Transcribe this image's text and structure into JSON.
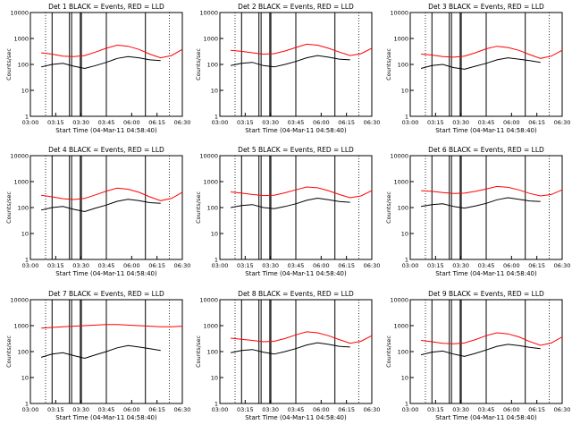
{
  "x_ticks": [
    "03:00",
    "03:15",
    "03:30",
    "03:45",
    "06:00",
    "06:15",
    "06:30"
  ],
  "y_ticks": [
    "1",
    "10",
    "100",
    "1000",
    "10000"
  ],
  "y_label": "Counts/sec",
  "x_label": "Start Time (04-Mar-11 04:58:40)",
  "colors": {
    "events": "#000000",
    "lld": "#ff0000"
  },
  "chart_data": [
    {
      "type": "line",
      "title": "Det 1 BLACK = Events, RED = LLD",
      "xlabel": "Start Time (04-Mar-11 04:58:40)",
      "ylabel": "Counts/sec",
      "yscale": "log",
      "ylim": [
        1,
        10000
      ],
      "x": [
        0.0,
        0.5,
        1.0,
        1.5,
        2.0,
        2.5,
        3.0,
        3.5,
        4.0,
        4.5,
        5.0,
        5.5,
        6.0,
        6.5,
        7.0
      ],
      "series": [
        {
          "name": "Events",
          "color": "#000000",
          "values": [
            null,
            80,
            100,
            110,
            85,
            70,
            90,
            120,
            170,
            200,
            180,
            150,
            140,
            null,
            null
          ]
        },
        {
          "name": "LLD",
          "color": "#ff0000",
          "values": [
            null,
            280,
            250,
            210,
            200,
            220,
            300,
            420,
            550,
            500,
            380,
            250,
            180,
            220,
            380
          ]
        }
      ]
    },
    {
      "type": "line",
      "title": "Det 2 BLACK = Events, RED = LLD",
      "xlabel": "Start Time (04-Mar-11 04:58:40)",
      "ylabel": "Counts/sec",
      "yscale": "log",
      "ylim": [
        1,
        10000
      ],
      "x": [
        0.0,
        0.5,
        1.0,
        1.5,
        2.0,
        2.5,
        3.0,
        3.5,
        4.0,
        4.5,
        5.0,
        5.5,
        6.0,
        6.5,
        7.0
      ],
      "series": [
        {
          "name": "Events",
          "color": "#000000",
          "values": [
            null,
            90,
            110,
            120,
            90,
            80,
            100,
            130,
            180,
            220,
            190,
            160,
            150,
            null,
            null
          ]
        },
        {
          "name": "LLD",
          "color": "#ff0000",
          "values": [
            null,
            350,
            320,
            280,
            250,
            260,
            330,
            450,
            600,
            550,
            420,
            300,
            220,
            260,
            420
          ]
        }
      ]
    },
    {
      "type": "line",
      "title": "Det 3 BLACK = Events, RED = LLD",
      "xlabel": "Start Time (04-Mar-11 04:58:40)",
      "ylabel": "Counts/sec",
      "yscale": "log",
      "ylim": [
        1,
        10000
      ],
      "x": [
        0.0,
        0.5,
        1.0,
        1.5,
        2.0,
        2.5,
        3.0,
        3.5,
        4.0,
        4.5,
        5.0,
        5.5,
        6.0,
        6.5,
        7.0
      ],
      "series": [
        {
          "name": "Events",
          "color": "#000000",
          "values": [
            null,
            70,
            90,
            100,
            75,
            65,
            85,
            110,
            150,
            180,
            160,
            140,
            120,
            null,
            null
          ]
        },
        {
          "name": "LLD",
          "color": "#ff0000",
          "values": [
            null,
            250,
            230,
            200,
            190,
            210,
            280,
            400,
            500,
            450,
            350,
            240,
            170,
            210,
            350
          ]
        }
      ]
    },
    {
      "type": "line",
      "title": "Det 4 BLACK = Events, RED = LLD",
      "xlabel": "Start Time (04-Mar-11 04:58:40)",
      "ylabel": "Counts/sec",
      "yscale": "log",
      "ylim": [
        1,
        10000
      ],
      "x": [
        0.0,
        0.5,
        1.0,
        1.5,
        2.0,
        2.5,
        3.0,
        3.5,
        4.0,
        4.5,
        5.0,
        5.5,
        6.0,
        6.5,
        7.0
      ],
      "series": [
        {
          "name": "Events",
          "color": "#000000",
          "values": [
            null,
            80,
            100,
            110,
            85,
            70,
            95,
            125,
            175,
            210,
            185,
            155,
            145,
            null,
            null
          ]
        },
        {
          "name": "LLD",
          "color": "#ff0000",
          "values": [
            null,
            300,
            260,
            220,
            205,
            225,
            310,
            430,
            560,
            510,
            390,
            260,
            185,
            225,
            390
          ]
        }
      ]
    },
    {
      "type": "line",
      "title": "Det 5 BLACK = Events, RED = LLD",
      "xlabel": "Start Time (04-Mar-11 04:58:40)",
      "ylabel": "Counts/sec",
      "yscale": "log",
      "ylim": [
        1,
        10000
      ],
      "x": [
        0.0,
        0.5,
        1.0,
        1.5,
        2.0,
        2.5,
        3.0,
        3.5,
        4.0,
        4.5,
        5.0,
        5.5,
        6.0,
        6.5,
        7.0
      ],
      "series": [
        {
          "name": "Events",
          "color": "#000000",
          "values": [
            null,
            100,
            120,
            130,
            100,
            90,
            110,
            140,
            190,
            230,
            200,
            170,
            160,
            null,
            null
          ]
        },
        {
          "name": "LLD",
          "color": "#ff0000",
          "values": [
            null,
            400,
            360,
            320,
            290,
            300,
            370,
            480,
            620,
            580,
            450,
            320,
            240,
            280,
            450
          ]
        }
      ]
    },
    {
      "type": "line",
      "title": "Det 6 BLACK = Events, RED = LLD",
      "xlabel": "Start Time (04-Mar-11 04:58:40)",
      "ylabel": "Counts/sec",
      "yscale": "log",
      "ylim": [
        1,
        10000
      ],
      "x": [
        0.0,
        0.5,
        1.0,
        1.5,
        2.0,
        2.5,
        3.0,
        3.5,
        4.0,
        4.5,
        5.0,
        5.5,
        6.0,
        6.5,
        7.0
      ],
      "series": [
        {
          "name": "Events",
          "color": "#000000",
          "values": [
            null,
            110,
            130,
            140,
            110,
            95,
            115,
            145,
            200,
            240,
            210,
            180,
            170,
            null,
            null
          ]
        },
        {
          "name": "LLD",
          "color": "#ff0000",
          "values": [
            null,
            450,
            420,
            380,
            350,
            360,
            420,
            520,
            650,
            600,
            480,
            350,
            280,
            320,
            480
          ]
        }
      ]
    },
    {
      "type": "line",
      "title": "Det 7 BLACK = Events, RED = LLD",
      "xlabel": "Start Time (04-Mar-11 04:58:40)",
      "ylabel": "Counts/sec",
      "yscale": "log",
      "ylim": [
        1,
        10000
      ],
      "x": [
        0.0,
        0.5,
        1.0,
        1.5,
        2.0,
        2.5,
        3.0,
        3.5,
        4.0,
        4.5,
        5.0,
        5.5,
        6.0,
        6.5,
        7.0
      ],
      "series": [
        {
          "name": "Events",
          "color": "#000000",
          "values": [
            null,
            60,
            80,
            90,
            70,
            55,
            75,
            100,
            140,
            170,
            150,
            130,
            110,
            null,
            null
          ]
        },
        {
          "name": "LLD",
          "color": "#ff0000",
          "values": [
            null,
            800,
            850,
            900,
            950,
            1000,
            1050,
            1100,
            1100,
            1050,
            1000,
            950,
            900,
            900,
            950
          ]
        }
      ]
    },
    {
      "type": "line",
      "title": "Det 8 BLACK = Events, RED = LLD",
      "xlabel": "Start Time (04-Mar-11 04:58:40)",
      "ylabel": "Counts/sec",
      "yscale": "log",
      "ylim": [
        1,
        10000
      ],
      "x": [
        0.0,
        0.5,
        1.0,
        1.5,
        2.0,
        2.5,
        3.0,
        3.5,
        4.0,
        4.5,
        5.0,
        5.5,
        6.0,
        6.5,
        7.0
      ],
      "series": [
        {
          "name": "Events",
          "color": "#000000",
          "values": [
            null,
            90,
            110,
            120,
            95,
            80,
            100,
            130,
            180,
            220,
            190,
            160,
            150,
            null,
            null
          ]
        },
        {
          "name": "LLD",
          "color": "#ff0000",
          "values": [
            null,
            330,
            300,
            270,
            240,
            250,
            320,
            440,
            580,
            530,
            410,
            290,
            210,
            250,
            410
          ]
        }
      ]
    },
    {
      "type": "line",
      "title": "Det 9 BLACK = Events, RED = LLD",
      "xlabel": "Start Time (04-Mar-11 04:58:40)",
      "ylabel": "Counts/sec",
      "yscale": "log",
      "ylim": [
        1,
        10000
      ],
      "x": [
        0.0,
        0.5,
        1.0,
        1.5,
        2.0,
        2.5,
        3.0,
        3.5,
        4.0,
        4.5,
        5.0,
        5.5,
        6.0,
        6.5,
        7.0
      ],
      "series": [
        {
          "name": "Events",
          "color": "#000000",
          "values": [
            null,
            75,
            95,
            105,
            80,
            65,
            85,
            115,
            160,
            190,
            170,
            145,
            130,
            null,
            null
          ]
        },
        {
          "name": "LLD",
          "color": "#ff0000",
          "values": [
            null,
            270,
            240,
            210,
            200,
            215,
            290,
            410,
            530,
            480,
            370,
            245,
            175,
            215,
            370
          ]
        }
      ]
    }
  ]
}
